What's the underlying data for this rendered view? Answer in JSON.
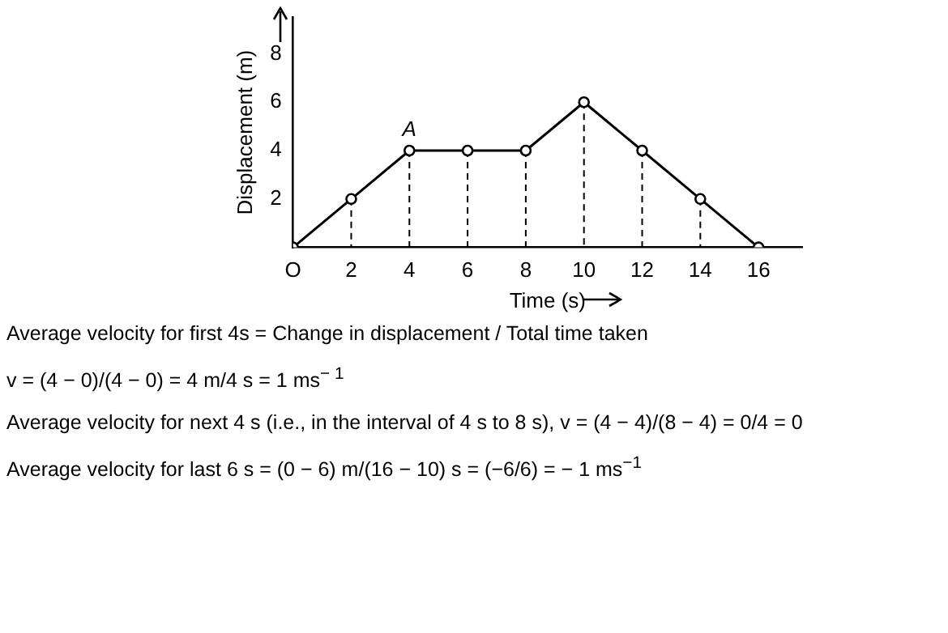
{
  "chart_data": {
    "type": "line",
    "xlabel": "Time (s)",
    "ylabel": "Displacement (m)",
    "x": [
      0,
      2,
      4,
      6,
      8,
      10,
      12,
      14,
      16
    ],
    "series": [
      {
        "color": "#000000",
        "values": [
          0,
          2,
          4,
          4,
          4,
          6,
          4,
          2,
          0
        ],
        "errors": [
          null,
          [
            0,
            2
          ],
          [
            0,
            4
          ],
          [
            0,
            4
          ],
          [
            0,
            4
          ],
          [
            0,
            6
          ],
          [
            0,
            4
          ],
          [
            0,
            2
          ],
          null
        ]
      }
    ],
    "xlim": [
      0,
      17.5
    ],
    "xticks": [
      {
        "value": 0,
        "label": "O"
      },
      2,
      4,
      6,
      8,
      10,
      12,
      14,
      16
    ],
    "ylim": [
      0,
      9.5
    ],
    "yticks": [
      2,
      4,
      6,
      8
    ],
    "grid": false,
    "legend": false,
    "marker": "circle",
    "line_style": "solid",
    "annotations": [
      {
        "text": "A",
        "x": 4,
        "y": 4
      },
      "Average velocity for first 4s = Change in displacement / Total time taken",
      "v = (4 − 0)/(4 − 0) = 4 m/4 s = 1 ms$^{− 1}$",
      "Average velocity for next 4 s (i.e., in the interval of 4 s to 8 s), v = (4 − 4)/(8 − 4) = 0/4 = 0",
      "Average velocity for last 6 s = (0 − 6) m/(16 − 10) s = (−6/6) = − 1 ms$^{−1}$"
    ]
  }
}
